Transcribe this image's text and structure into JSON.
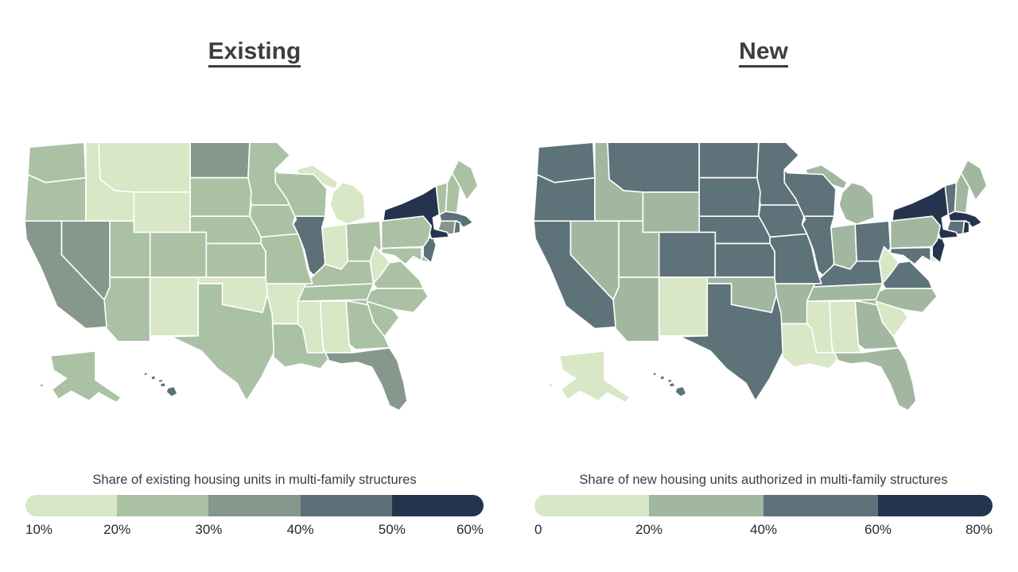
{
  "figure": {
    "background": "#ffffff",
    "text_color": "#3a3e42"
  },
  "chart_data": [
    {
      "type": "choropleth",
      "title": "Existing",
      "legend_title": "Share of existing housing units in multi-family structures",
      "unit": "percent of housing units",
      "legend_position": "bottom",
      "scale": {
        "type": "threshold",
        "domain": [
          10,
          20,
          30,
          40,
          50,
          60
        ],
        "colors": [
          "#d8e7c5",
          "#abc1a4",
          "#85988b",
          "#5c7078",
          "#25344e"
        ],
        "tick_labels": [
          "10%",
          "20%",
          "30%",
          "40%",
          "50%",
          "60%"
        ]
      },
      "states": [
        {
          "abbr": "AL",
          "name": "Alabama",
          "value": 16
        },
        {
          "abbr": "AK",
          "name": "Alaska",
          "value": 24
        },
        {
          "abbr": "AZ",
          "name": "Arizona",
          "value": 22
        },
        {
          "abbr": "AR",
          "name": "Arkansas",
          "value": 16
        },
        {
          "abbr": "CA",
          "name": "California",
          "value": 33
        },
        {
          "abbr": "CO",
          "name": "Colorado",
          "value": 27
        },
        {
          "abbr": "CT",
          "name": "Connecticut",
          "value": 36
        },
        {
          "abbr": "DE",
          "name": "Delaware",
          "value": 21
        },
        {
          "abbr": "DC",
          "name": "District of Columbia",
          "value": 58
        },
        {
          "abbr": "FL",
          "name": "Florida",
          "value": 38
        },
        {
          "abbr": "GA",
          "name": "Georgia",
          "value": 24
        },
        {
          "abbr": "HI",
          "name": "Hawaii",
          "value": 41
        },
        {
          "abbr": "ID",
          "name": "Idaho",
          "value": 13
        },
        {
          "abbr": "IL",
          "name": "Illinois",
          "value": 41
        },
        {
          "abbr": "IN",
          "name": "Indiana",
          "value": 19
        },
        {
          "abbr": "IA",
          "name": "Iowa",
          "value": 21
        },
        {
          "abbr": "KS",
          "name": "Kansas",
          "value": 23
        },
        {
          "abbr": "KY",
          "name": "Kentucky",
          "value": 22
        },
        {
          "abbr": "LA",
          "name": "Louisiana",
          "value": 23
        },
        {
          "abbr": "ME",
          "name": "Maine",
          "value": 23
        },
        {
          "abbr": "MD",
          "name": "Maryland",
          "value": 26
        },
        {
          "abbr": "MA",
          "name": "Massachusetts",
          "value": 43
        },
        {
          "abbr": "MI",
          "name": "Michigan",
          "value": 18
        },
        {
          "abbr": "MN",
          "name": "Minnesota",
          "value": 23
        },
        {
          "abbr": "MS",
          "name": "Mississippi",
          "value": 15
        },
        {
          "abbr": "MO",
          "name": "Missouri",
          "value": 21
        },
        {
          "abbr": "MT",
          "name": "Montana",
          "value": 14
        },
        {
          "abbr": "NE",
          "name": "Nebraska",
          "value": 24
        },
        {
          "abbr": "NV",
          "name": "Nevada",
          "value": 32
        },
        {
          "abbr": "NH",
          "name": "New Hampshire",
          "value": 25
        },
        {
          "abbr": "NJ",
          "name": "New Jersey",
          "value": 44
        },
        {
          "abbr": "NM",
          "name": "New Mexico",
          "value": 16
        },
        {
          "abbr": "NY",
          "name": "New York",
          "value": 57
        },
        {
          "abbr": "NC",
          "name": "North Carolina",
          "value": 21
        },
        {
          "abbr": "ND",
          "name": "North Dakota",
          "value": 32
        },
        {
          "abbr": "OH",
          "name": "Ohio",
          "value": 23
        },
        {
          "abbr": "OK",
          "name": "Oklahoma",
          "value": 17
        },
        {
          "abbr": "OR",
          "name": "Oregon",
          "value": 24
        },
        {
          "abbr": "PA",
          "name": "Pennsylvania",
          "value": 24
        },
        {
          "abbr": "RI",
          "name": "Rhode Island",
          "value": 44
        },
        {
          "abbr": "SC",
          "name": "South Carolina",
          "value": 21
        },
        {
          "abbr": "SD",
          "name": "South Dakota",
          "value": 22
        },
        {
          "abbr": "TN",
          "name": "Tennessee",
          "value": 21
        },
        {
          "abbr": "TX",
          "name": "Texas",
          "value": 26
        },
        {
          "abbr": "UT",
          "name": "Utah",
          "value": 23
        },
        {
          "abbr": "VT",
          "name": "Vermont",
          "value": 23
        },
        {
          "abbr": "VA",
          "name": "Virginia",
          "value": 24
        },
        {
          "abbr": "WA",
          "name": "Washington",
          "value": 28
        },
        {
          "abbr": "WV",
          "name": "West Virginia",
          "value": 11
        },
        {
          "abbr": "WI",
          "name": "Wisconsin",
          "value": 26
        },
        {
          "abbr": "WY",
          "name": "Wyoming",
          "value": 13
        }
      ]
    },
    {
      "type": "choropleth",
      "title": "New",
      "legend_title": "Share of new housing units authorized in multi-family structures",
      "unit": "percent of housing units",
      "legend_position": "bottom",
      "scale": {
        "type": "threshold",
        "domain": [
          0,
          20,
          40,
          60,
          80
        ],
        "colors": [
          "#d8e7c5",
          "#a2b79f",
          "#5e727a",
          "#25344e"
        ],
        "tick_labels": [
          "0",
          "20%",
          "40%",
          "60%",
          "80%"
        ]
      },
      "states": [
        {
          "abbr": "AL",
          "name": "Alabama",
          "value": 12
        },
        {
          "abbr": "AK",
          "name": "Alaska",
          "value": 15
        },
        {
          "abbr": "AZ",
          "name": "Arizona",
          "value": 33
        },
        {
          "abbr": "AR",
          "name": "Arkansas",
          "value": 25
        },
        {
          "abbr": "CA",
          "name": "California",
          "value": 52
        },
        {
          "abbr": "CO",
          "name": "Colorado",
          "value": 48
        },
        {
          "abbr": "CT",
          "name": "Connecticut",
          "value": 55
        },
        {
          "abbr": "DE",
          "name": "Delaware",
          "value": 15
        },
        {
          "abbr": "DC",
          "name": "District of Columbia",
          "value": 78
        },
        {
          "abbr": "FL",
          "name": "Florida",
          "value": 35
        },
        {
          "abbr": "GA",
          "name": "Georgia",
          "value": 32
        },
        {
          "abbr": "HI",
          "name": "Hawaii",
          "value": 55
        },
        {
          "abbr": "ID",
          "name": "Idaho",
          "value": 25
        },
        {
          "abbr": "IL",
          "name": "Illinois",
          "value": 50
        },
        {
          "abbr": "IN",
          "name": "Indiana",
          "value": 28
        },
        {
          "abbr": "IA",
          "name": "Iowa",
          "value": 45
        },
        {
          "abbr": "KS",
          "name": "Kansas",
          "value": 45
        },
        {
          "abbr": "KY",
          "name": "Kentucky",
          "value": 45
        },
        {
          "abbr": "LA",
          "name": "Louisiana",
          "value": 15
        },
        {
          "abbr": "ME",
          "name": "Maine",
          "value": 28
        },
        {
          "abbr": "MD",
          "name": "Maryland",
          "value": 45
        },
        {
          "abbr": "MA",
          "name": "Massachusetts",
          "value": 66
        },
        {
          "abbr": "MI",
          "name": "Michigan",
          "value": 30
        },
        {
          "abbr": "MN",
          "name": "Minnesota",
          "value": 48
        },
        {
          "abbr": "MS",
          "name": "Mississippi",
          "value": 10
        },
        {
          "abbr": "MO",
          "name": "Missouri",
          "value": 44
        },
        {
          "abbr": "MT",
          "name": "Montana",
          "value": 48
        },
        {
          "abbr": "NE",
          "name": "Nebraska",
          "value": 50
        },
        {
          "abbr": "NV",
          "name": "Nevada",
          "value": 35
        },
        {
          "abbr": "NH",
          "name": "New Hampshire",
          "value": 35
        },
        {
          "abbr": "NJ",
          "name": "New Jersey",
          "value": 70
        },
        {
          "abbr": "NM",
          "name": "New Mexico",
          "value": 15
        },
        {
          "abbr": "NY",
          "name": "New York",
          "value": 72
        },
        {
          "abbr": "NC",
          "name": "North Carolina",
          "value": 35
        },
        {
          "abbr": "ND",
          "name": "North Dakota",
          "value": 55
        },
        {
          "abbr": "OH",
          "name": "Ohio",
          "value": 45
        },
        {
          "abbr": "OK",
          "name": "Oklahoma",
          "value": 28
        },
        {
          "abbr": "OR",
          "name": "Oregon",
          "value": 55
        },
        {
          "abbr": "PA",
          "name": "Pennsylvania",
          "value": 35
        },
        {
          "abbr": "RI",
          "name": "Rhode Island",
          "value": 62
        },
        {
          "abbr": "SC",
          "name": "South Carolina",
          "value": 18
        },
        {
          "abbr": "SD",
          "name": "South Dakota",
          "value": 50
        },
        {
          "abbr": "TN",
          "name": "Tennessee",
          "value": 30
        },
        {
          "abbr": "TX",
          "name": "Texas",
          "value": 45
        },
        {
          "abbr": "UT",
          "name": "Utah",
          "value": 35
        },
        {
          "abbr": "VT",
          "name": "Vermont",
          "value": 45
        },
        {
          "abbr": "VA",
          "name": "Virginia",
          "value": 48
        },
        {
          "abbr": "WA",
          "name": "Washington",
          "value": 55
        },
        {
          "abbr": "WV",
          "name": "West Virginia",
          "value": 10
        },
        {
          "abbr": "WI",
          "name": "Wisconsin",
          "value": 52
        },
        {
          "abbr": "WY",
          "name": "Wyoming",
          "value": 30
        }
      ]
    }
  ]
}
